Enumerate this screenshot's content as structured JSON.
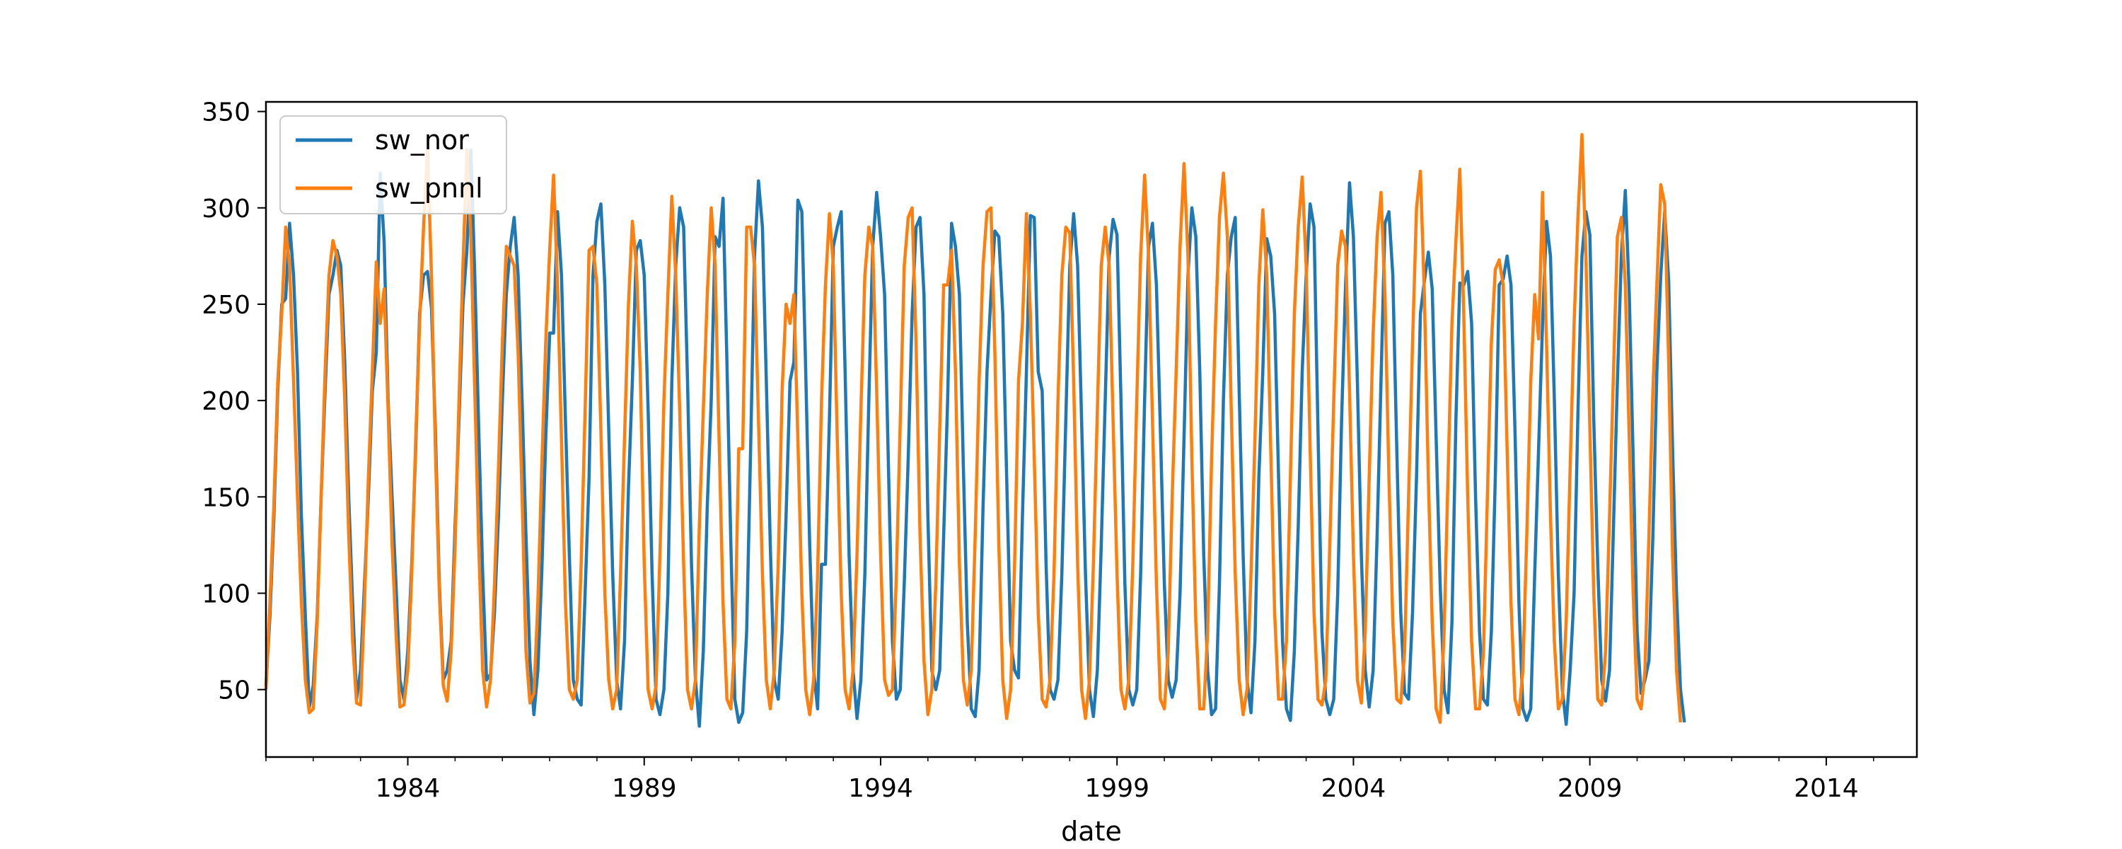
{
  "chart_data": {
    "type": "line",
    "title": "",
    "xlabel": "date",
    "ylabel": "",
    "xlim": [
      "1981-01",
      "2015-12"
    ],
    "ylim": [
      15,
      355
    ],
    "xticks": [
      "1984",
      "1989",
      "1994",
      "1999",
      "2004",
      "2009",
      "2014"
    ],
    "yticks": [
      "50",
      "100",
      "150",
      "200",
      "250",
      "300",
      "350"
    ],
    "grid": false,
    "legend_position": "upper left",
    "x_start": "1981-01",
    "x_step": "1 month",
    "series": [
      {
        "name": "sw_nor",
        "color": "#1f77b4",
        "values": [
          52,
          88,
          138,
          205,
          250,
          253,
          292,
          265,
          215,
          140,
          88,
          41,
          52,
          88,
          150,
          205,
          255,
          265,
          278,
          270,
          220,
          150,
          95,
          45,
          60,
          105,
          150,
          205,
          225,
          318,
          282,
          200,
          150,
          105,
          55,
          45,
          70,
          115,
          175,
          245,
          265,
          267,
          248,
          185,
          105,
          55,
          60,
          75,
          135,
          190,
          250,
          278,
          330,
          265,
          185,
          110,
          55,
          58,
          90,
          140,
          200,
          255,
          280,
          295,
          265,
          200,
          130,
          65,
          37,
          60,
          110,
          180,
          235,
          235,
          298,
          265,
          190,
          120,
          55,
          45,
          42,
          100,
          160,
          265,
          293,
          302,
          260,
          185,
          110,
          55,
          40,
          75,
          155,
          210,
          278,
          283,
          265,
          195,
          110,
          45,
          37,
          50,
          100,
          210,
          270,
          300,
          290,
          210,
          115,
          55,
          31,
          70,
          145,
          200,
          285,
          280,
          305,
          220,
          125,
          45,
          33,
          38,
          80,
          175,
          275,
          314,
          290,
          210,
          125,
          55,
          45,
          80,
          140,
          210,
          220,
          304,
          298,
          215,
          125,
          60,
          40,
          115,
          115,
          190,
          280,
          290,
          298,
          215,
          120,
          60,
          35,
          55,
          110,
          200,
          280,
          308,
          285,
          255,
          165,
          75,
          45,
          50,
          105,
          170,
          245,
          290,
          295,
          255,
          140,
          60,
          50,
          60,
          130,
          200,
          292,
          280,
          255,
          165,
          85,
          40,
          36,
          60,
          145,
          215,
          255,
          288,
          285,
          245,
          160,
          75,
          60,
          56,
          140,
          215,
          296,
          295,
          215,
          205,
          115,
          50,
          45,
          55,
          110,
          190,
          270,
          297,
          270,
          190,
          110,
          50,
          36,
          60,
          125,
          200,
          275,
          294,
          286,
          200,
          105,
          50,
          42,
          50,
          110,
          200,
          280,
          292,
          260,
          185,
          105,
          55,
          46,
          55,
          100,
          180,
          265,
          300,
          285,
          215,
          120,
          60,
          37,
          40,
          105,
          200,
          265,
          285,
          295,
          205,
          120,
          55,
          38,
          75,
          160,
          215,
          284,
          275,
          245,
          160,
          75,
          40,
          34,
          70,
          135,
          215,
          265,
          302,
          290,
          185,
          80,
          45,
          37,
          45,
          100,
          190,
          260,
          313,
          285,
          210,
          120,
          60,
          41,
          60,
          130,
          210,
          292,
          298,
          265,
          175,
          90,
          48,
          45,
          90,
          160,
          245,
          262,
          277,
          258,
          180,
          105,
          50,
          38,
          85,
          190,
          261,
          260,
          267,
          240,
          150,
          80,
          45,
          42,
          80,
          160,
          260,
          263,
          275,
          260,
          185,
          95,
          40,
          34,
          40,
          110,
          175,
          240,
          293,
          275,
          200,
          110,
          50,
          32,
          60,
          100,
          195,
          275,
          298,
          286,
          190,
          115,
          55,
          44,
          60,
          135,
          210,
          275,
          309,
          255,
          170,
          80,
          48,
          55,
          65,
          130,
          215,
          265,
          298,
          262,
          175,
          100,
          50,
          33
        ]
      },
      {
        "name": "sw_pnnl",
        "color": "#ff7f0e",
        "values": [
          50,
          95,
          145,
          210,
          245,
          290,
          270,
          210,
          150,
          95,
          55,
          38,
          40,
          85,
          150,
          215,
          265,
          283,
          275,
          255,
          200,
          130,
          75,
          43,
          42,
          95,
          160,
          215,
          272,
          240,
          258,
          195,
          125,
          80,
          41,
          42,
          60,
          110,
          180,
          240,
          290,
          330,
          265,
          175,
          100,
          52,
          44,
          70,
          125,
          200,
          270,
          330,
          285,
          205,
          125,
          60,
          41,
          55,
          105,
          165,
          230,
          280,
          275,
          270,
          225,
          150,
          70,
          43,
          48,
          95,
          165,
          230,
          278,
          317,
          260,
          180,
          95,
          50,
          45,
          55,
          115,
          195,
          278,
          280,
          260,
          185,
          100,
          55,
          40,
          50,
          110,
          180,
          250,
          293,
          270,
          215,
          115,
          50,
          40,
          52,
          120,
          200,
          255,
          306,
          265,
          195,
          115,
          50,
          40,
          55,
          135,
          195,
          255,
          300,
          270,
          180,
          95,
          45,
          40,
          75,
          175,
          175,
          290,
          290,
          270,
          190,
          110,
          55,
          40,
          60,
          115,
          205,
          250,
          240,
          255,
          180,
          100,
          50,
          37,
          55,
          110,
          200,
          260,
          297,
          270,
          180,
          100,
          50,
          40,
          60,
          120,
          195,
          265,
          290,
          280,
          205,
          120,
          55,
          47,
          50,
          110,
          190,
          270,
          295,
          300,
          230,
          130,
          65,
          37,
          50,
          105,
          185,
          260,
          260,
          278,
          215,
          115,
          55,
          42,
          60,
          130,
          210,
          270,
          298,
          300,
          225,
          125,
          55,
          35,
          50,
          115,
          210,
          240,
          297,
          245,
          170,
          90,
          45,
          41,
          55,
          110,
          200,
          265,
          290,
          287,
          210,
          115,
          50,
          35,
          55,
          115,
          195,
          270,
          290,
          270,
          190,
          110,
          50,
          40,
          55,
          115,
          200,
          275,
          317,
          275,
          190,
          105,
          45,
          40,
          70,
          150,
          215,
          280,
          323,
          275,
          170,
          85,
          40,
          40,
          80,
          170,
          240,
          295,
          318,
          285,
          195,
          110,
          55,
          37,
          50,
          110,
          180,
          260,
          299,
          265,
          175,
          90,
          45,
          45,
          75,
          160,
          245,
          290,
          316,
          270,
          175,
          90,
          45,
          42,
          55,
          125,
          200,
          270,
          288,
          280,
          205,
          120,
          55,
          43,
          80,
          160,
          235,
          285,
          308,
          255,
          160,
          85,
          45,
          43,
          70,
          150,
          230,
          300,
          319,
          255,
          160,
          85,
          40,
          33,
          80,
          160,
          240,
          283,
          320,
          245,
          150,
          75,
          40,
          40,
          70,
          150,
          230,
          268,
          273,
          260,
          175,
          95,
          45,
          37,
          60,
          130,
          210,
          255,
          232,
          308,
          230,
          140,
          75,
          40,
          45,
          85,
          165,
          240,
          296,
          338,
          275,
          185,
          100,
          45,
          42,
          70,
          140,
          215,
          285,
          295,
          260,
          180,
          100,
          45,
          40,
          60,
          130,
          205,
          260,
          312,
          302,
          220,
          120,
          60,
          33
        ]
      }
    ]
  }
}
